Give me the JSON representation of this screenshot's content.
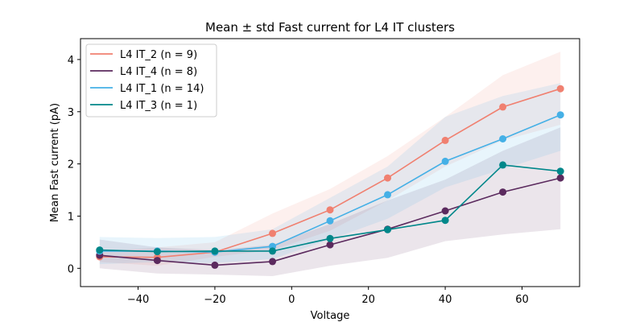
{
  "chart_data": {
    "type": "line",
    "title": "Mean ± std Fast current for L4 IT clusters",
    "xlabel": "Voltage",
    "ylabel": "Mean Fast current (pA)",
    "xlim": [
      -55,
      75
    ],
    "ylim": [
      -0.35,
      4.4
    ],
    "xticks": [
      -40,
      -20,
      0,
      20,
      40,
      60
    ],
    "yticks": [
      0,
      1,
      2,
      3,
      4
    ],
    "grid": false,
    "legend_position": "top-left",
    "x": [
      -50,
      -35,
      -20,
      -5,
      10,
      25,
      40,
      55,
      70
    ],
    "series": [
      {
        "name": "L4 IT_2 (n = 9)",
        "color": "#f08070",
        "mean": [
          0.22,
          0.21,
          0.31,
          0.67,
          1.12,
          1.73,
          2.45,
          3.09,
          3.44
        ],
        "std_lower": [
          0.12,
          0.05,
          0.22,
          0.35,
          0.72,
          1.3,
          1.95,
          2.45,
          2.75
        ],
        "std_upper": [
          0.32,
          0.4,
          0.5,
          1.05,
          1.52,
          2.15,
          2.9,
          3.7,
          4.15
        ]
      },
      {
        "name": "L4 IT_4 (n = 8)",
        "color": "#5b2a5e",
        "mean": [
          0.25,
          0.15,
          0.06,
          0.13,
          0.45,
          0.75,
          1.1,
          1.46,
          1.73
        ],
        "std_lower": [
          0.0,
          -0.1,
          -0.12,
          -0.15,
          0.05,
          0.2,
          0.52,
          0.65,
          0.75
        ],
        "std_upper": [
          0.55,
          0.4,
          0.35,
          0.45,
          0.85,
          1.3,
          1.7,
          2.25,
          2.7
        ]
      },
      {
        "name": "L4 IT_1 (n = 14)",
        "color": "#45b0e6",
        "mean": [
          0.33,
          0.33,
          0.31,
          0.42,
          0.91,
          1.41,
          2.05,
          2.48,
          2.94
        ],
        "std_lower": [
          0.08,
          0.12,
          0.1,
          0.18,
          0.55,
          0.95,
          1.55,
          1.9,
          2.25
        ],
        "std_upper": [
          0.6,
          0.58,
          0.6,
          0.75,
          1.35,
          1.95,
          2.9,
          3.3,
          3.55
        ]
      },
      {
        "name": "L4 IT_3 (n = 1)",
        "color": "#00878a",
        "mean": [
          0.35,
          0.32,
          0.33,
          0.33,
          0.57,
          0.74,
          0.92,
          1.98,
          1.86
        ],
        "std_lower": [
          0.35,
          0.32,
          0.33,
          0.33,
          0.57,
          0.74,
          0.92,
          1.98,
          1.86
        ],
        "std_upper": [
          0.35,
          0.32,
          0.33,
          0.33,
          0.57,
          0.74,
          0.92,
          1.98,
          1.86
        ]
      }
    ]
  }
}
